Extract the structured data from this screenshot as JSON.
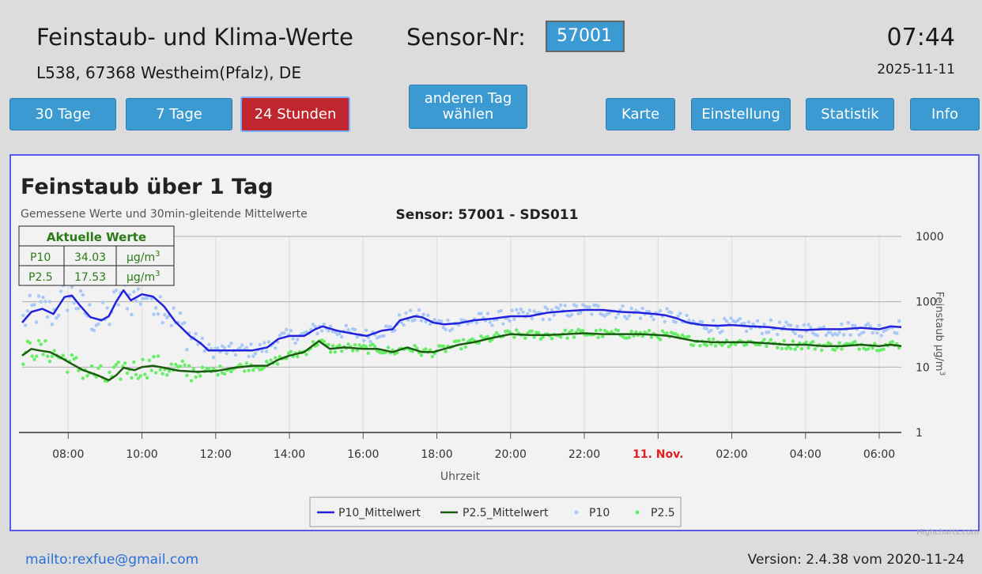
{
  "header": {
    "title": "Feinstaub- und Klima-Werte",
    "sensor_label": "Sensor-Nr:",
    "sensor_value": "57001",
    "clock": "07:44",
    "address": "L538, 67368 Westheim(Pfalz), DE",
    "date": "2025-11-11"
  },
  "nav": {
    "days30": "30 Tage",
    "days7": "7 Tage",
    "hours24": "24 Stunden",
    "other_day_line1": "anderen Tag",
    "other_day_line2": "wählen",
    "map": "Karte",
    "settings": "Einstellung",
    "statistics": "Statistik",
    "info": "Info"
  },
  "current": {
    "title": "Aktuelle Werte",
    "rows": [
      {
        "name": "P10",
        "value": "34.03",
        "unit": "µg/m",
        "sup": "3"
      },
      {
        "name": "P2.5",
        "value": "17.53",
        "unit": "µg/m",
        "sup": "3"
      }
    ]
  },
  "footer": {
    "mail": "mailto:rexfue@gmail.com",
    "version": "Version: 2.4.38 vom 2020-11-24",
    "watermark": "Highcharts.com"
  },
  "colors": {
    "p10_line": "#2222dd",
    "p25_line": "#1a5c10",
    "p10_dots": "#a9c8f7",
    "p25_dots": "#66ee66",
    "date_tick": "#e02020"
  },
  "chart_data": {
    "type": "line",
    "title": "Feinstaub über 1 Tag",
    "subtitle": "Gemessene Werte und 30min-gleitende Mittelwerte",
    "sensor_title": "Sensor: 57001 - SDS011",
    "xlabel": "Uhrzeit",
    "ylabel": "Feinstaub µg/m",
    "ylabel_sup": "3",
    "y_scale": "log",
    "ylim": [
      1,
      1000
    ],
    "yticks": [
      "1",
      "10",
      "100",
      "1000"
    ],
    "xlim_hours": [
      6.75,
      30.6
    ],
    "xticks": [
      {
        "h": 8,
        "label": "08:00"
      },
      {
        "h": 10,
        "label": "10:00"
      },
      {
        "h": 12,
        "label": "12:00"
      },
      {
        "h": 14,
        "label": "14:00"
      },
      {
        "h": 16,
        "label": "16:00"
      },
      {
        "h": 18,
        "label": "18:00"
      },
      {
        "h": 20,
        "label": "20:00"
      },
      {
        "h": 22,
        "label": "22:00"
      },
      {
        "h": 24,
        "label": "11. Nov.",
        "date": true
      },
      {
        "h": 26,
        "label": "02:00"
      },
      {
        "h": 28,
        "label": "04:00"
      },
      {
        "h": 30,
        "label": "06:00"
      }
    ],
    "grid": true,
    "legend_position": "bottom",
    "series": [
      {
        "name": "P10_Mittelwert",
        "kind": "line",
        "points": [
          [
            6.75,
            48
          ],
          [
            7,
            70
          ],
          [
            7.3,
            78
          ],
          [
            7.6,
            65
          ],
          [
            7.9,
            118
          ],
          [
            8.1,
            125
          ],
          [
            8.3,
            90
          ],
          [
            8.6,
            58
          ],
          [
            8.9,
            52
          ],
          [
            9.1,
            60
          ],
          [
            9.3,
            100
          ],
          [
            9.5,
            150
          ],
          [
            9.7,
            105
          ],
          [
            10,
            130
          ],
          [
            10.3,
            120
          ],
          [
            10.6,
            85
          ],
          [
            10.9,
            50
          ],
          [
            11.3,
            30
          ],
          [
            11.6,
            23
          ],
          [
            11.8,
            18
          ],
          [
            12.3,
            18
          ],
          [
            13,
            18
          ],
          [
            13.4,
            20
          ],
          [
            13.7,
            27
          ],
          [
            14,
            30
          ],
          [
            14.4,
            30
          ],
          [
            14.7,
            38
          ],
          [
            14.9,
            42
          ],
          [
            15.3,
            36
          ],
          [
            15.8,
            32
          ],
          [
            16.1,
            30
          ],
          [
            16.5,
            36
          ],
          [
            16.8,
            38
          ],
          [
            17,
            52
          ],
          [
            17.4,
            60
          ],
          [
            17.6,
            58
          ],
          [
            17.9,
            48
          ],
          [
            18.2,
            45
          ],
          [
            18.6,
            47
          ],
          [
            19,
            52
          ],
          [
            19.5,
            55
          ],
          [
            20,
            60
          ],
          [
            20.5,
            60
          ],
          [
            21,
            68
          ],
          [
            21.5,
            72
          ],
          [
            22,
            75
          ],
          [
            22.5,
            75
          ],
          [
            23,
            70
          ],
          [
            23.5,
            68
          ],
          [
            23.9,
            65
          ],
          [
            24.2,
            62
          ],
          [
            24.5,
            56
          ],
          [
            24.8,
            48
          ],
          [
            25.2,
            44
          ],
          [
            25.6,
            43
          ],
          [
            26,
            44
          ],
          [
            26.5,
            42
          ],
          [
            27,
            41
          ],
          [
            27.5,
            38
          ],
          [
            28,
            37
          ],
          [
            28.5,
            38
          ],
          [
            29,
            38
          ],
          [
            29.5,
            40
          ],
          [
            30,
            38
          ],
          [
            30.3,
            42
          ],
          [
            30.6,
            41
          ]
        ]
      },
      {
        "name": "P2.5_Mittelwert",
        "kind": "line",
        "points": [
          [
            6.75,
            15
          ],
          [
            7,
            19
          ],
          [
            7.2,
            18
          ],
          [
            7.5,
            17
          ],
          [
            7.8,
            14
          ],
          [
            8,
            12
          ],
          [
            8.4,
            9
          ],
          [
            8.8,
            7.5
          ],
          [
            9.1,
            6.3
          ],
          [
            9.3,
            7.5
          ],
          [
            9.5,
            9.8
          ],
          [
            9.8,
            9
          ],
          [
            10,
            10
          ],
          [
            10.3,
            10.5
          ],
          [
            10.6,
            9.8
          ],
          [
            11,
            8.8
          ],
          [
            11.5,
            8.5
          ],
          [
            12,
            8.7
          ],
          [
            12.5,
            9.8
          ],
          [
            13,
            10.5
          ],
          [
            13.4,
            10.5
          ],
          [
            13.7,
            13
          ],
          [
            14,
            15
          ],
          [
            14.4,
            17
          ],
          [
            14.8,
            25
          ],
          [
            15.1,
            19
          ],
          [
            15.5,
            20
          ],
          [
            16,
            19
          ],
          [
            16.4,
            19
          ],
          [
            16.8,
            17
          ],
          [
            17.2,
            20
          ],
          [
            17.6,
            17
          ],
          [
            17.9,
            17
          ],
          [
            18.2,
            19
          ],
          [
            18.6,
            22
          ],
          [
            19,
            24
          ],
          [
            19.5,
            28
          ],
          [
            20,
            32
          ],
          [
            20.5,
            31
          ],
          [
            21,
            31
          ],
          [
            21.5,
            32
          ],
          [
            22,
            33
          ],
          [
            22.5,
            32
          ],
          [
            23,
            32
          ],
          [
            23.5,
            32
          ],
          [
            24,
            31
          ],
          [
            24.3,
            30
          ],
          [
            24.7,
            27
          ],
          [
            25,
            25
          ],
          [
            25.5,
            24
          ],
          [
            26,
            24
          ],
          [
            26.5,
            24
          ],
          [
            27,
            23
          ],
          [
            27.5,
            22
          ],
          [
            28,
            22
          ],
          [
            28.5,
            21
          ],
          [
            29,
            21
          ],
          [
            29.5,
            22
          ],
          [
            30,
            21
          ],
          [
            30.3,
            22
          ],
          [
            30.6,
            21
          ]
        ]
      },
      {
        "name": "P10",
        "kind": "scatter"
      },
      {
        "name": "P2.5",
        "kind": "scatter"
      }
    ]
  }
}
